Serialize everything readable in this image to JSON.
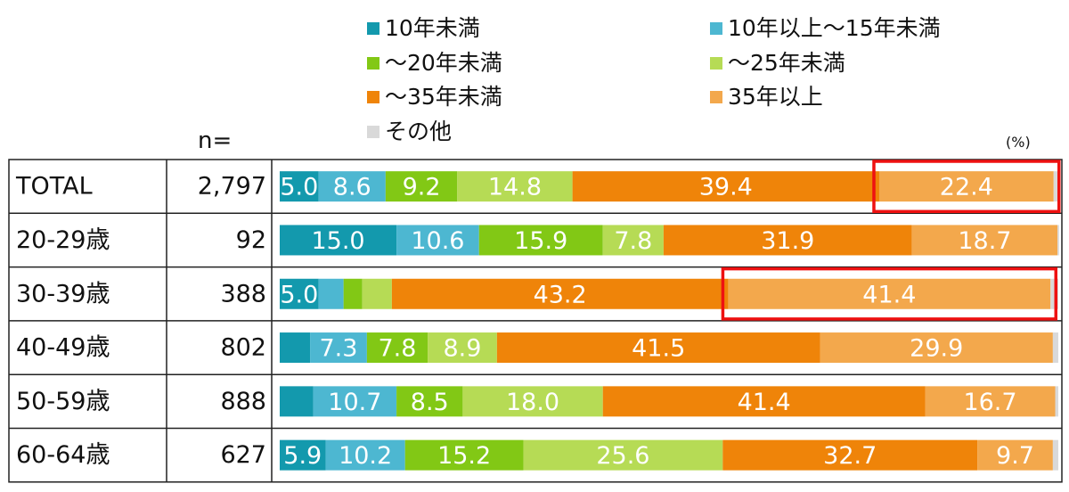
{
  "n_header": "n=",
  "unit": "(%)",
  "legend": [
    {
      "label": "10年未満",
      "color": "#1399ad"
    },
    {
      "label": "10年以上～15年未満",
      "color": "#4db7d1"
    },
    {
      "label": "～20年未満",
      "color": "#82c815"
    },
    {
      "label": "～25年未満",
      "color": "#b6db55"
    },
    {
      "label": "～35年未満",
      "color": "#ef8409"
    },
    {
      "label": "35年以上",
      "color": "#f3a84c"
    },
    {
      "label": "その他",
      "color": "#d9d9d9"
    }
  ],
  "highlight_color": "#ee1111",
  "chart_data": {
    "type": "bar",
    "orientation": "horizontal",
    "stacked": true,
    "unit": "%",
    "categories": [
      "TOTAL",
      "20-29歳",
      "30-39歳",
      "40-49歳",
      "50-59歳",
      "60-64歳"
    ],
    "n": [
      "2,797",
      "92",
      "388",
      "802",
      "888",
      "627"
    ],
    "series": [
      {
        "name": "10年未満",
        "values": [
          5.0,
          15.0,
          5.0,
          3.9,
          4.3,
          5.9
        ],
        "labels": [
          "5.0",
          "15.0",
          "5.0",
          "",
          "",
          "5.9"
        ]
      },
      {
        "name": "10年以上～15年未満",
        "values": [
          8.6,
          10.6,
          3.2,
          7.3,
          10.7,
          10.2
        ],
        "labels": [
          "8.6",
          "10.6",
          "",
          "7.3",
          "10.7",
          "10.2"
        ]
      },
      {
        "name": "～20年未満",
        "values": [
          9.2,
          15.9,
          2.4,
          7.8,
          8.5,
          15.2
        ],
        "labels": [
          "9.2",
          "15.9",
          "",
          "7.8",
          "8.5",
          "15.2"
        ]
      },
      {
        "name": "～25年未満",
        "values": [
          14.8,
          7.8,
          3.8,
          8.9,
          18.0,
          25.6
        ],
        "labels": [
          "14.8",
          "7.8",
          "",
          "8.9",
          "18.0",
          "25.6"
        ]
      },
      {
        "name": "～35年未満",
        "values": [
          39.4,
          31.9,
          43.2,
          41.5,
          41.4,
          32.7
        ],
        "labels": [
          "39.4",
          "31.9",
          "43.2",
          "41.5",
          "41.4",
          "32.7"
        ]
      },
      {
        "name": "35年以上",
        "values": [
          22.4,
          18.7,
          41.4,
          29.9,
          16.7,
          9.7
        ],
        "labels": [
          "22.4",
          "18.7",
          "41.4",
          "29.9",
          "16.7",
          "9.7"
        ]
      },
      {
        "name": "その他",
        "values": [
          0.6,
          0.2,
          1.0,
          0.7,
          0.4,
          0.7
        ],
        "labels": [
          "",
          "",
          "",
          "",
          "",
          ""
        ]
      }
    ],
    "highlights": [
      {
        "category": "TOTAL",
        "series": "35年以上"
      },
      {
        "category": "30-39歳",
        "series": "35年以上"
      }
    ],
    "xlim": [
      0,
      100
    ]
  }
}
